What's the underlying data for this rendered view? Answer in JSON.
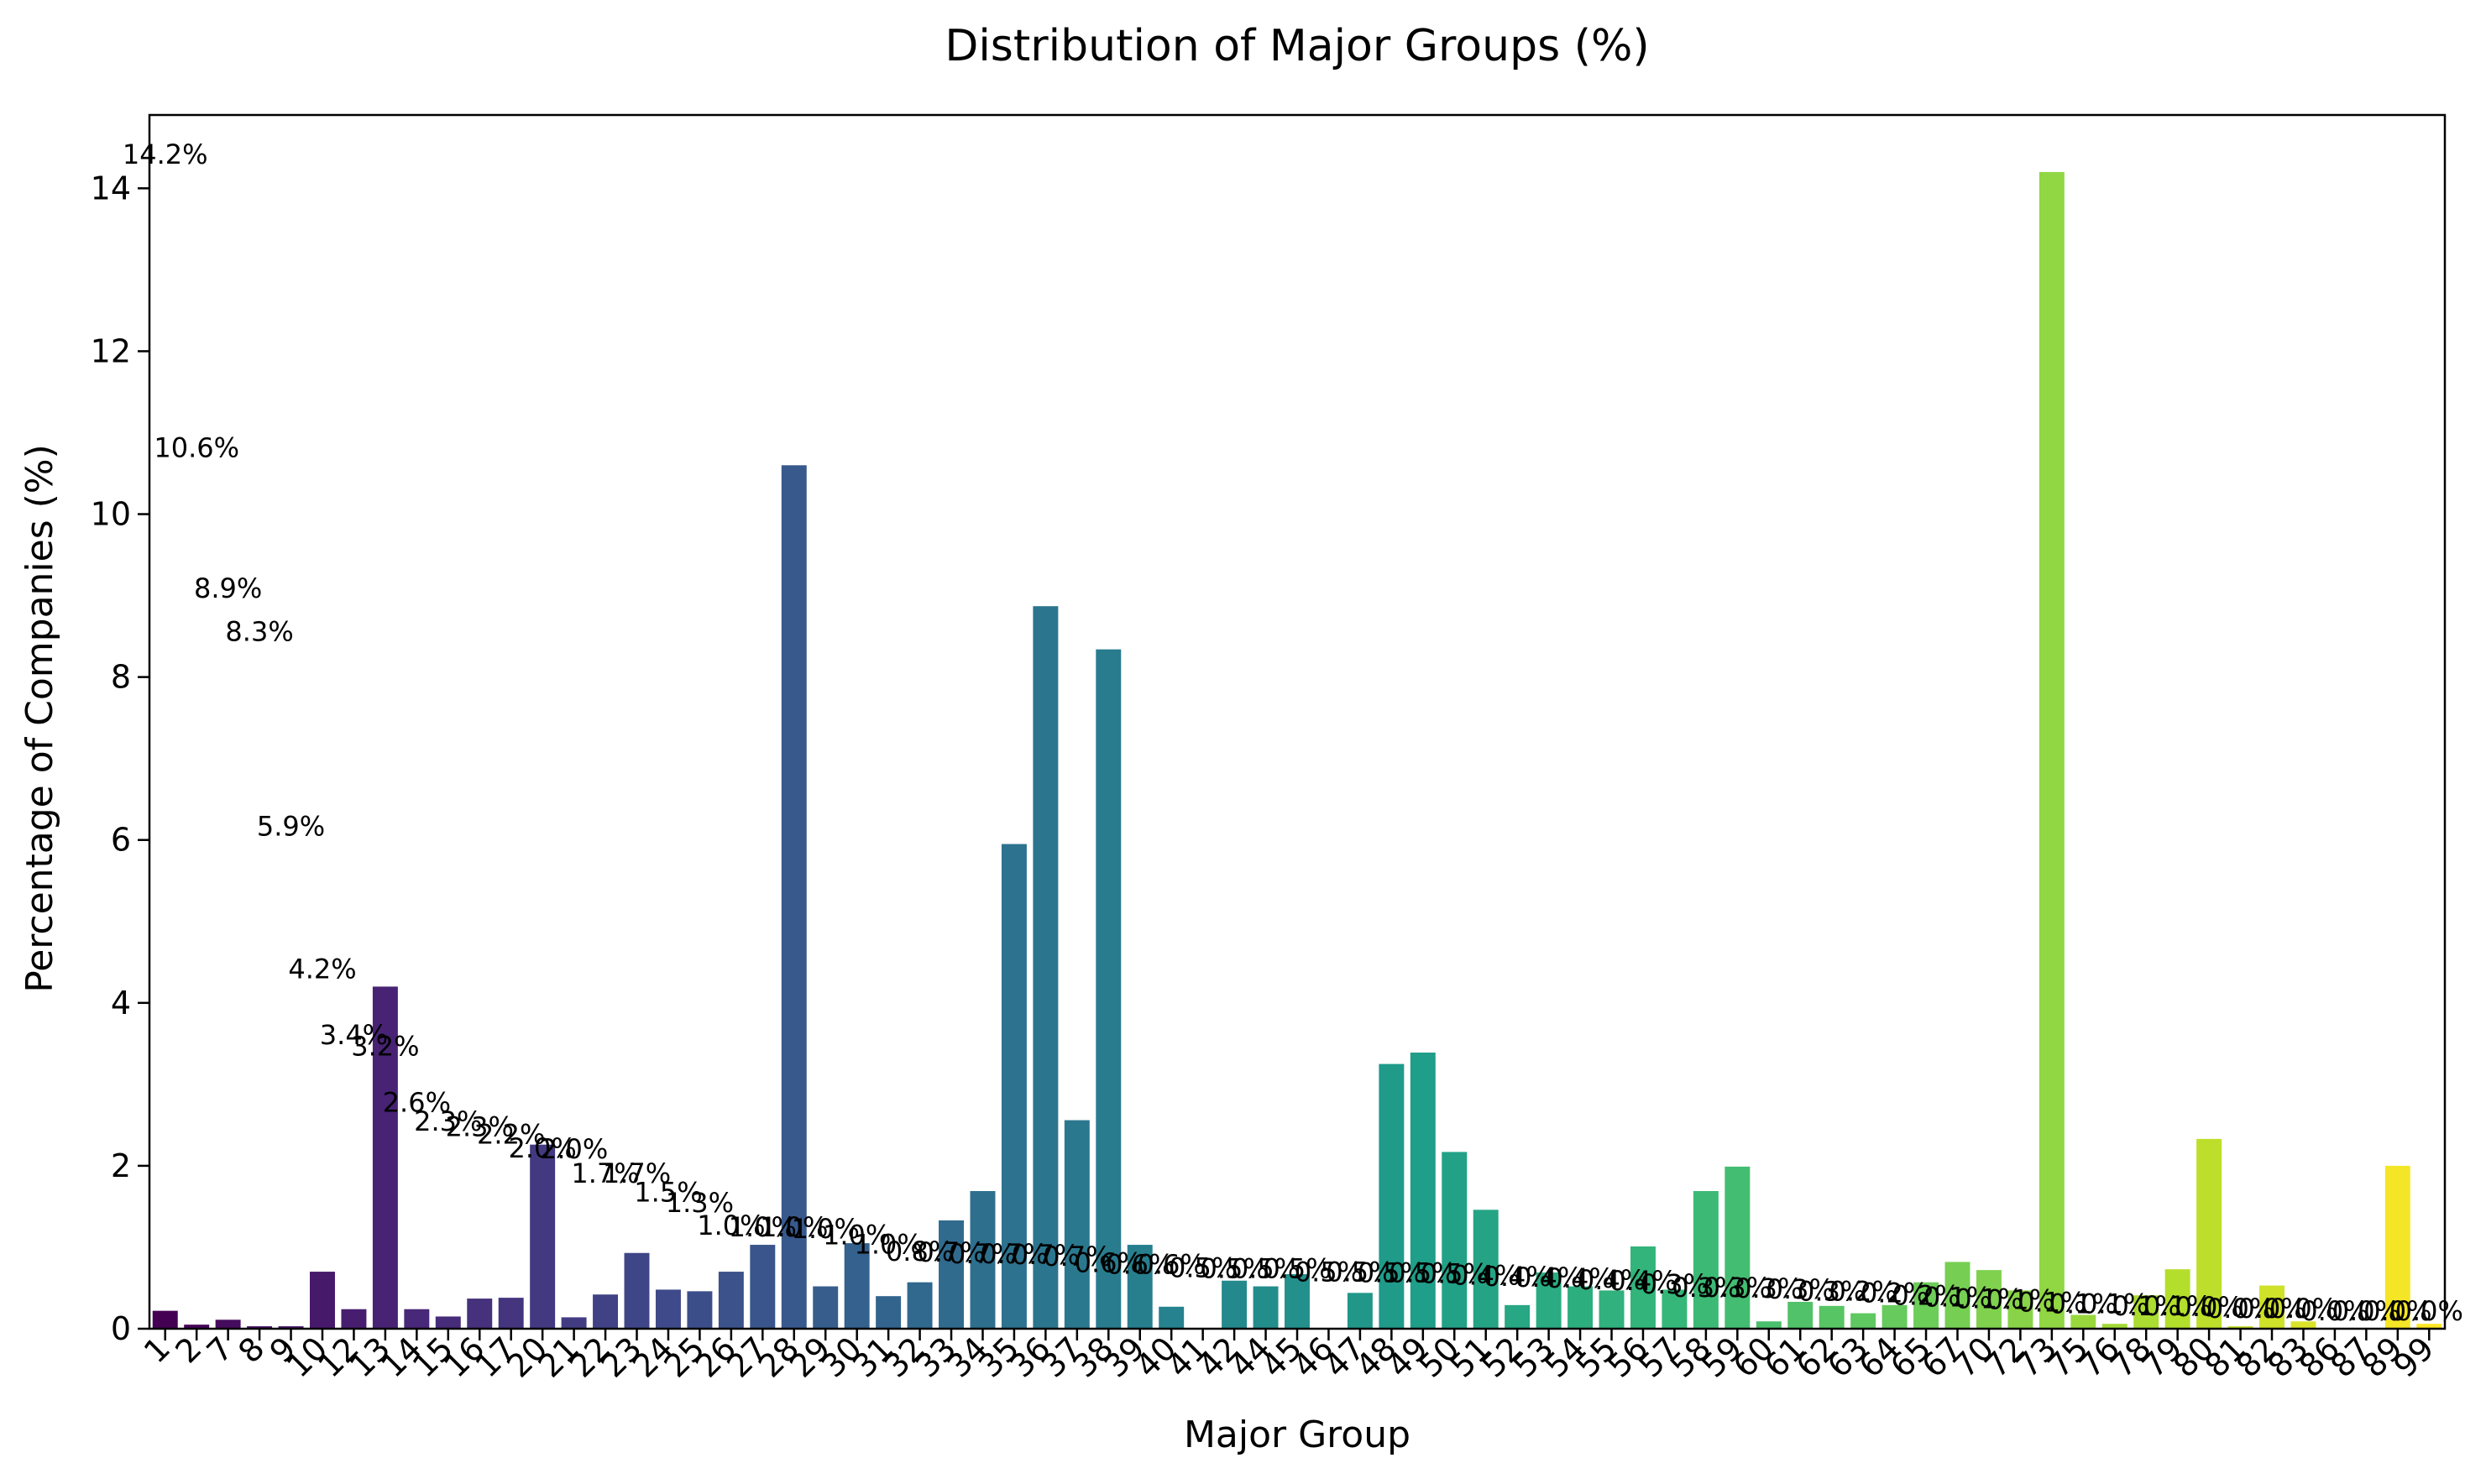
{
  "chart_data": {
    "type": "bar",
    "title": "Distribution of Major Groups (%)",
    "xlabel": "Major Group",
    "ylabel": "Percentage of Companies (%)",
    "ylim": [
      0,
      14.9
    ],
    "yticks": [
      0,
      2,
      4,
      6,
      8,
      10,
      12,
      14
    ],
    "grid": false,
    "legend": "none",
    "colormap": "viridis",
    "categories": [
      "1",
      "2",
      "7",
      "8",
      "9",
      "10",
      "12",
      "13",
      "14",
      "15",
      "16",
      "17",
      "20",
      "21",
      "22",
      "23",
      "24",
      "25",
      "26",
      "27",
      "28",
      "29",
      "30",
      "31",
      "32",
      "33",
      "34",
      "35",
      "36",
      "37",
      "38",
      "39",
      "40",
      "41",
      "42",
      "44",
      "45",
      "46",
      "47",
      "48",
      "49",
      "50",
      "51",
      "52",
      "53",
      "54",
      "55",
      "56",
      "57",
      "58",
      "59",
      "60",
      "61",
      "62",
      "63",
      "64",
      "65",
      "67",
      "70",
      "72",
      "73",
      "75",
      "76",
      "78",
      "79",
      "80",
      "81",
      "82",
      "83",
      "86",
      "87",
      "89",
      "99"
    ],
    "values": [
      0.22,
      0.05,
      0.11,
      0.03,
      0.03,
      0.7,
      0.24,
      4.2,
      0.24,
      0.15,
      0.37,
      0.38,
      2.26,
      0.14,
      0.42,
      0.93,
      0.48,
      0.46,
      0.7,
      1.03,
      10.6,
      0.52,
      1.05,
      0.4,
      0.57,
      1.33,
      1.69,
      5.95,
      8.87,
      2.56,
      8.34,
      1.03,
      0.27,
      0.0,
      0.59,
      0.52,
      0.67,
      0.0,
      0.44,
      3.25,
      3.39,
      2.17,
      1.46,
      0.29,
      0.69,
      0.52,
      0.47,
      1.01,
      0.48,
      1.69,
      1.99,
      0.09,
      0.33,
      0.28,
      0.19,
      0.29,
      0.57,
      0.82,
      0.72,
      0.47,
      14.2,
      0.17,
      0.06,
      0.41,
      0.73,
      2.33,
      0.03,
      0.53,
      0.09,
      0.0,
      0.0,
      2.0,
      0.06
    ],
    "annotations": [
      "14.2%",
      "10.6%",
      "8.9%",
      "8.3%",
      "5.9%",
      "4.2%",
      "3.4%",
      "3.2%",
      "2.6%",
      "2.3%",
      "2.3%",
      "2.2%",
      "2.0%",
      "2.0%",
      "1.7%",
      "1.7%",
      "1.5%",
      "1.3%",
      "1.0%",
      "1.0%",
      "1.0%",
      "1.0%",
      "1.0%",
      "1.0%",
      "0.8%",
      "0.7%",
      "0.7%",
      "0.7%",
      "0.7%",
      "0.7%",
      "0.6%",
      "0.6%",
      "0.6%",
      "0.5%",
      "0.5%",
      "0.5%",
      "0.5%",
      "0.5%",
      "0.5%",
      "0.5%",
      "0.5%",
      "0.5%",
      "0.4%",
      "0.4%",
      "0.4%",
      "0.4%",
      "0.4%",
      "0.4%",
      "0.3%",
      "0.3%",
      "0.3%",
      "0.3%",
      "0.3%",
      "0.3%",
      "0.2%",
      "0.2%",
      "0.2%",
      "0.1%",
      "0.1%",
      "0.1%",
      "0.1%",
      "0.1%",
      "0.1%",
      "0.1%",
      "0.1%",
      "0.0%",
      "0.0%",
      "0.0%",
      "0.0%",
      "0.0%",
      "0.0%",
      "0.0%",
      "0.0%"
    ]
  }
}
